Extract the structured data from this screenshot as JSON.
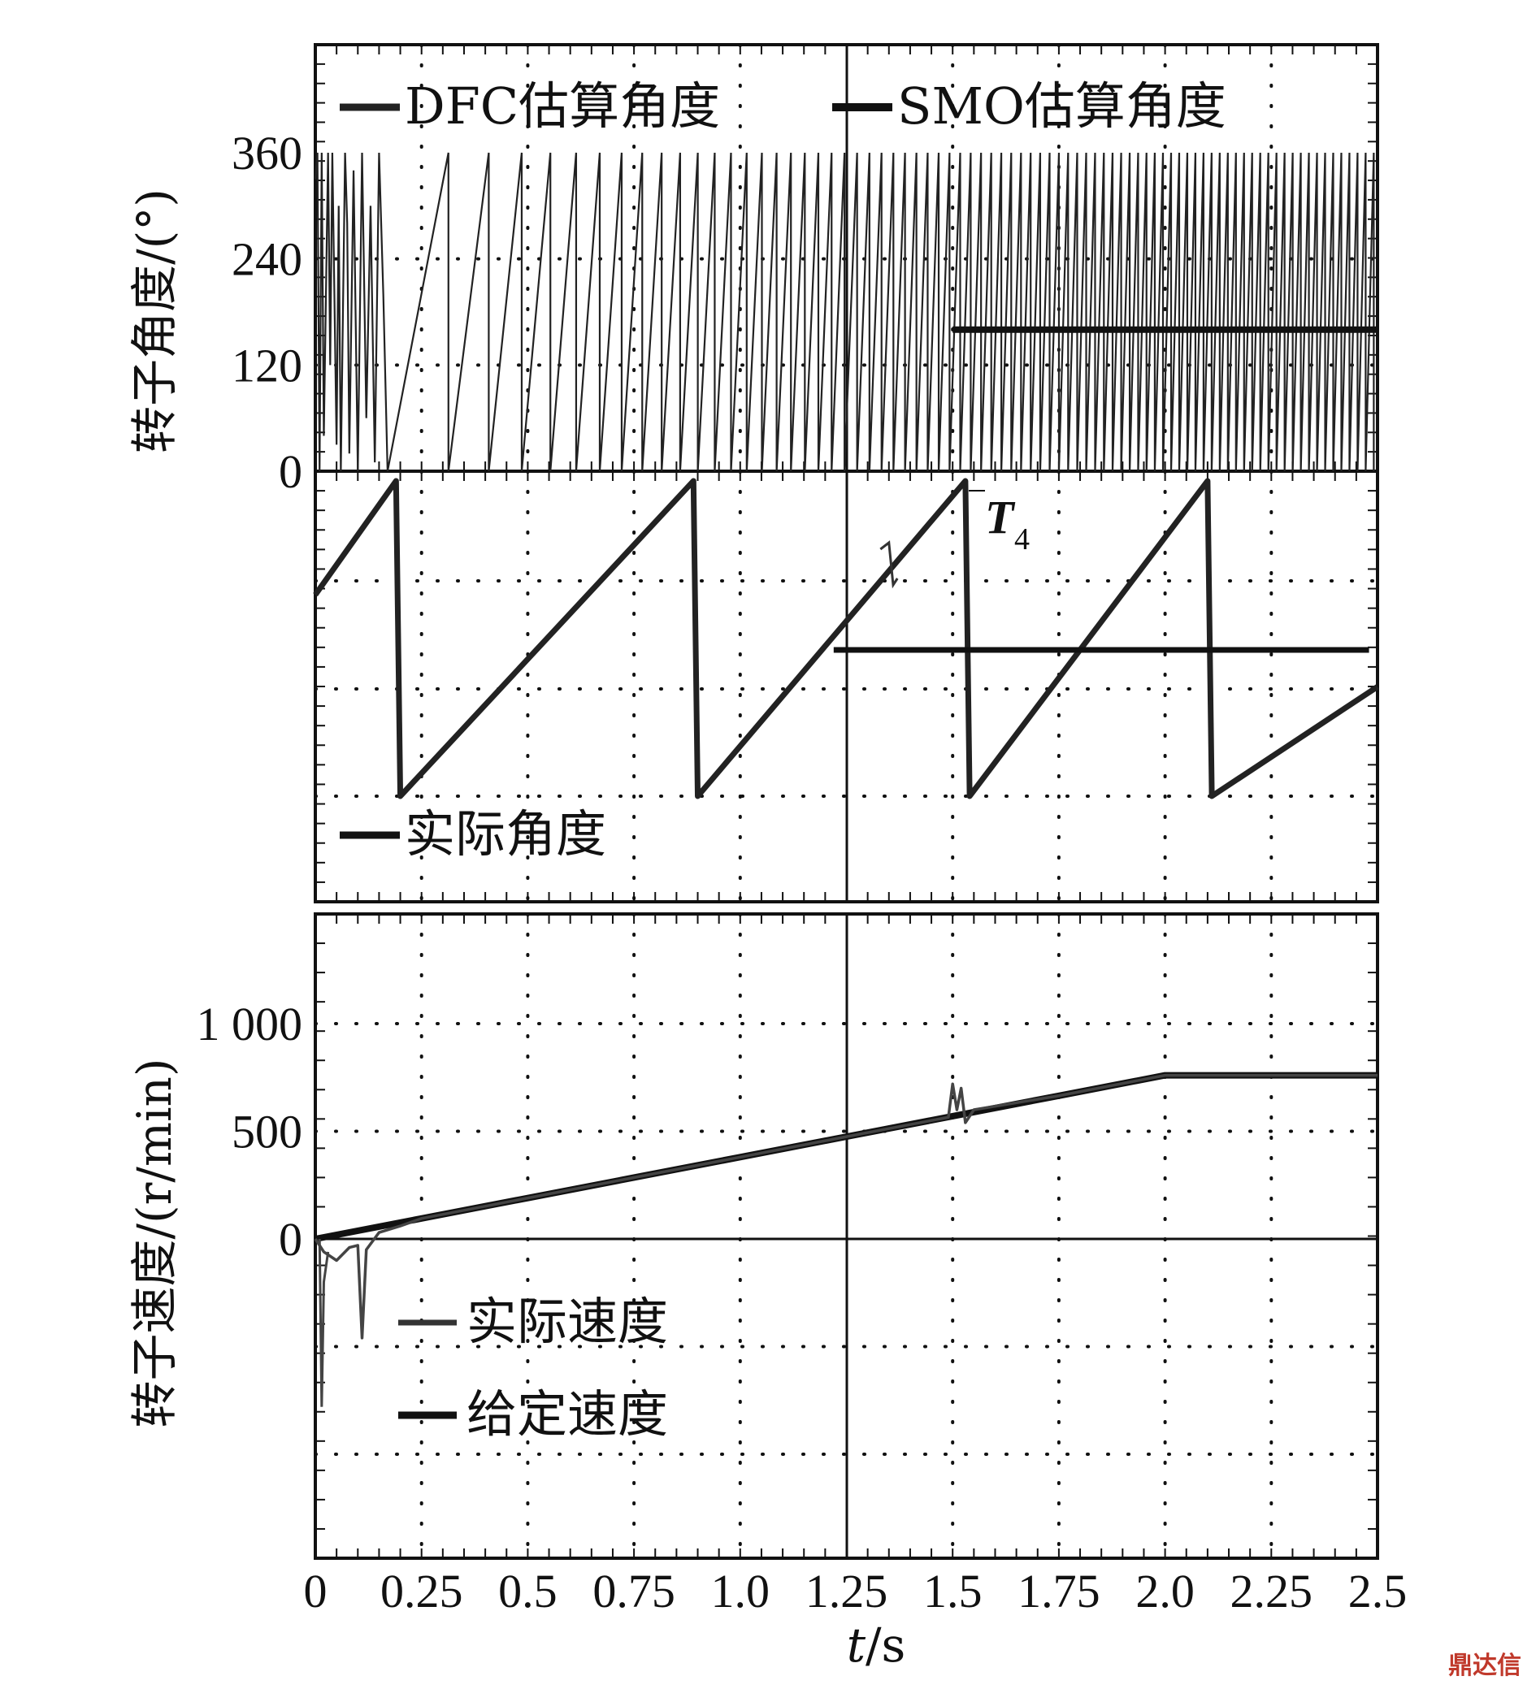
{
  "chart_data": [
    {
      "type": "line",
      "panel": "top",
      "ylabel": "转子角度/(°)",
      "yticks": [
        "0",
        "120",
        "240",
        "360"
      ],
      "ylim": [
        0,
        360
      ],
      "xlim": [
        0,
        2.5
      ],
      "legend": [
        "DFC估算角度",
        "SMO估算角度"
      ],
      "series": [
        {
          "name": "SMO估算角度",
          "description_points": {
            "x": [
              0,
              1.5,
              1.5,
              2.5
            ],
            "y": [
              0,
              0,
              160,
              160
            ]
          }
        },
        {
          "name": "DFC估算角度",
          "sawtooth": true
        }
      ]
    },
    {
      "type": "line",
      "panel": "middle",
      "legend": [
        "实际角度"
      ],
      "series": [
        {
          "name": "实际角度",
          "x": [
            0,
            0.19,
            0.2,
            0.89,
            0.9,
            1.53,
            1.54,
            2.1,
            2.11,
            2.5
          ],
          "y": [
            230,
            360,
            0,
            360,
            0,
            360,
            0,
            360,
            0,
            125
          ]
        }
      ]
    },
    {
      "type": "line",
      "panel": "bottom",
      "ylabel": "转子速度/(r/min)",
      "yticks": [
        "0",
        "500",
        "1 000"
      ],
      "ylim": [
        -1500,
        1500
      ],
      "xlim": [
        0,
        2.5
      ],
      "xticks": [
        "0",
        "0.25",
        "0.5",
        "0.75",
        "1.0",
        "1.25",
        "1.5",
        "1.75",
        "2.0",
        "2.25",
        "2.5"
      ],
      "legend": [
        "实际速度",
        "给定速度"
      ],
      "series": [
        {
          "name": "给定速度",
          "x": [
            0,
            0.25,
            0.5,
            0.75,
            1.0,
            1.25,
            1.5,
            1.75,
            2.0,
            2.5
          ],
          "y": [
            0,
            95,
            190,
            285,
            380,
            475,
            570,
            665,
            760,
            760
          ]
        },
        {
          "name": "实际速度",
          "x": [
            0,
            0.02,
            0.05,
            0.08,
            0.1,
            0.11,
            0.12,
            0.15,
            0.2,
            0.25,
            0.5,
            1.0,
            1.25,
            1.49,
            1.5,
            1.51,
            1.52,
            1.53,
            1.55,
            1.75,
            2.0,
            2.5
          ],
          "y": [
            0,
            -60,
            -100,
            -40,
            -30,
            -460,
            -50,
            30,
            60,
            95,
            190,
            380,
            475,
            565,
            720,
            600,
            700,
            540,
            600,
            665,
            760,
            760
          ]
        }
      ]
    }
  ],
  "xaxis": {
    "label_italic": "t",
    "label_rest": "/s"
  },
  "annotation": {
    "main": "T",
    "sub": "4"
  },
  "watermark": "鼎达信"
}
